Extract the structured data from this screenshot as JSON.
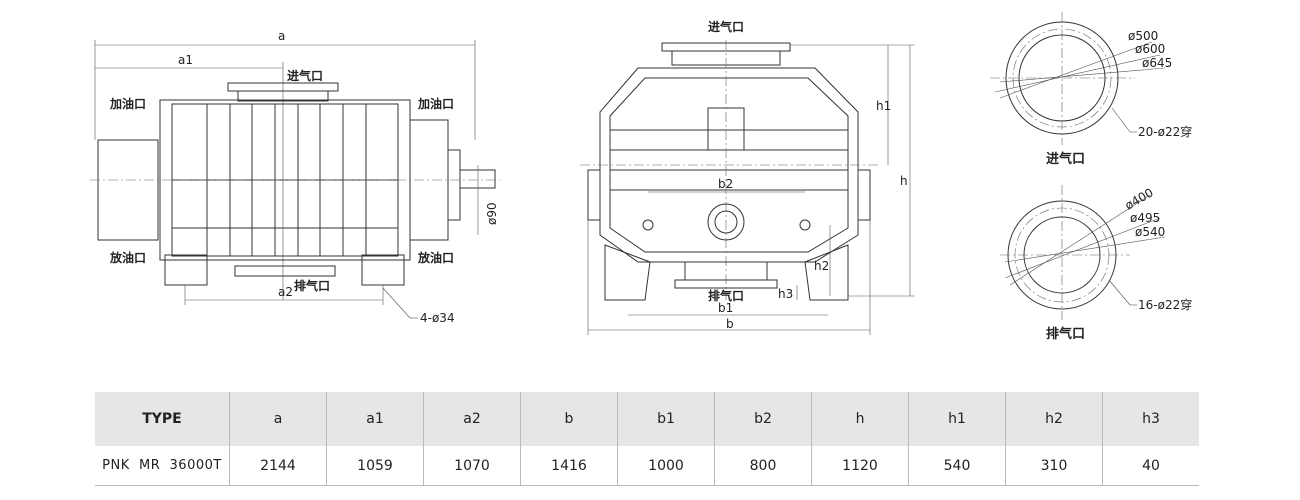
{
  "drawing": {
    "side_view": {
      "dim_a": "a",
      "dim_a1": "a1",
      "dim_a2": "a2",
      "inlet": "进气口",
      "outlet": "排气口",
      "oil_fill_left": "加油口",
      "oil_fill_right": "加油口",
      "oil_drain_left": "放油口",
      "oil_drain_right": "放油口",
      "shaft_dia": "ø90",
      "bolt_holes": "4-ø34"
    },
    "front_view": {
      "inlet": "进气口",
      "outlet": "排气口",
      "dim_b": "b",
      "dim_b1": "b1",
      "dim_b2": "b2",
      "dim_h": "h",
      "dim_h1": "h1",
      "dim_h2": "h2",
      "dim_h3": "h3"
    },
    "inlet_flange": {
      "title": "进气口",
      "d1": "ø500",
      "d2": "ø600",
      "d3": "ø645",
      "holes": "20-ø22穿"
    },
    "outlet_flange": {
      "title": "排气口",
      "d1": "ø400",
      "d2": "ø495",
      "d3": "ø540",
      "holes": "16-ø22穿"
    }
  },
  "table": {
    "headers": [
      "TYPE",
      "a",
      "a1",
      "a2",
      "b",
      "b1",
      "b2",
      "h",
      "h1",
      "h2",
      "h3"
    ],
    "row": [
      "PNK  MR  36000T",
      "2144",
      "1059",
      "1070",
      "1416",
      "1000",
      "800",
      "1120",
      "540",
      "310",
      "40"
    ]
  }
}
